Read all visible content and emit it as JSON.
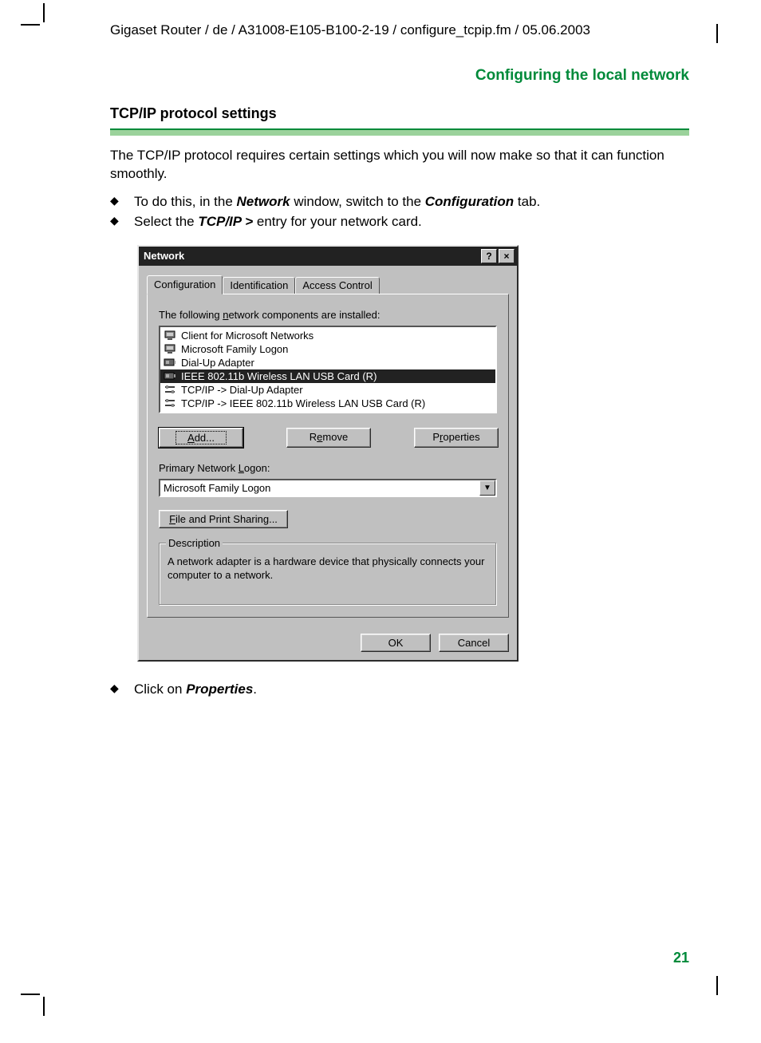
{
  "colors": {
    "accent_green": "#008a3a",
    "rule_green_light": "#9bd29b",
    "dialog_bg": "#c0c0c0",
    "titlebar_bg": "#222222",
    "text": "#000000",
    "page_bg": "#ffffff"
  },
  "header": {
    "path": "Gigaset Router / de / A31008-E105-B100-2-19 / configure_tcpip.fm / 05.06.2003"
  },
  "section": {
    "title": "Configuring the local network"
  },
  "subsection": {
    "title": "TCP/IP protocol settings",
    "intro": "The TCP/IP protocol requires certain settings which you will now make so that it can function smoothly."
  },
  "bullets_top": [
    {
      "pre": "To do this, in the ",
      "b1": "Network",
      "mid": " window, switch to the ",
      "b2": "Configuration",
      "post": " tab."
    },
    {
      "pre": "Select the ",
      "b1": "TCP/IP >",
      "mid": " entry for your network card.",
      "b2": "",
      "post": ""
    }
  ],
  "bullets_bottom": [
    {
      "pre": "Click on ",
      "b1": "Properties",
      "post": "."
    }
  ],
  "dialog": {
    "title": "Network",
    "help_btn": "?",
    "close_btn": "×",
    "tabs": [
      "Configuration",
      "Identification",
      "Access Control"
    ],
    "active_tab": 0,
    "list_label_pre": "The following ",
    "list_label_u": "n",
    "list_label_post": "etwork components are installed:",
    "items": [
      {
        "icon": "client",
        "label": "Client for Microsoft Networks",
        "selected": false
      },
      {
        "icon": "client",
        "label": "Microsoft Family Logon",
        "selected": false
      },
      {
        "icon": "adapter",
        "label": "Dial-Up Adapter",
        "selected": false
      },
      {
        "icon": "adapter",
        "label": "IEEE 802.11b Wireless LAN USB Card (R)",
        "selected": true
      },
      {
        "icon": "protocol",
        "label": "TCP/IP -> Dial-Up Adapter",
        "selected": false
      },
      {
        "icon": "protocol",
        "label": "TCP/IP -> IEEE 802.11b Wireless LAN USB Card (R)",
        "selected": false
      }
    ],
    "buttons": {
      "add_u": "A",
      "add_rest": "dd...",
      "remove_pre": "R",
      "remove_u": "e",
      "remove_post": "move",
      "props_pre": "P",
      "props_u": "r",
      "props_post": "operties"
    },
    "logon_label_pre": "Primary Network ",
    "logon_label_u": "L",
    "logon_label_post": "ogon:",
    "logon_value": "Microsoft Family Logon",
    "file_print_u": "F",
    "file_print_rest": "ile and Print Sharing...",
    "desc_legend": "Description",
    "desc_text": "A network adapter is a hardware device that physically connects your computer to a network.",
    "ok": "OK",
    "cancel": "Cancel"
  },
  "page_number": "21"
}
